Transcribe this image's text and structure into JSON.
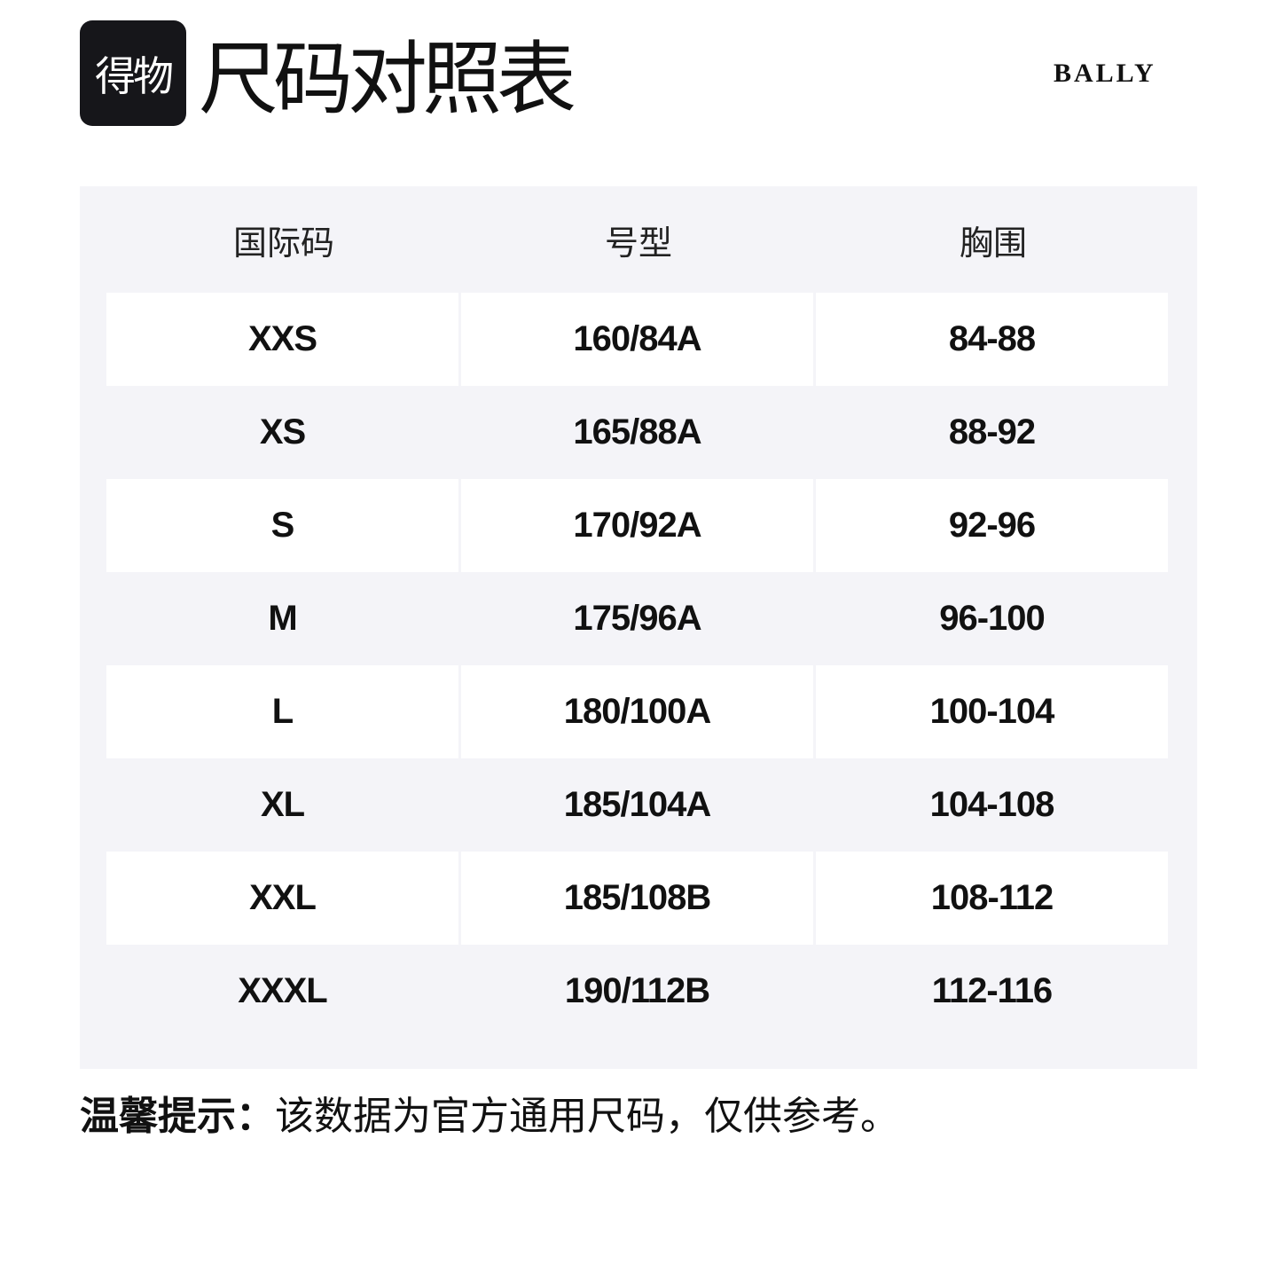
{
  "header": {
    "logo_text": "得物",
    "title": "尺码对照表",
    "brand": "BALLY"
  },
  "table": {
    "columns": [
      "国际码",
      "号型",
      "胸围"
    ],
    "rows": [
      [
        "XXS",
        "160/84A",
        "84-88"
      ],
      [
        "XS",
        "165/88A",
        "88-92"
      ],
      [
        "S",
        "170/92A",
        "92-96"
      ],
      [
        "M",
        "175/96A",
        "96-100"
      ],
      [
        "L",
        "180/100A",
        "100-104"
      ],
      [
        "XL",
        "185/104A",
        "104-108"
      ],
      [
        "XXL",
        "185/108B",
        "108-112"
      ],
      [
        "XXXL",
        "190/112B",
        "112-116"
      ]
    ]
  },
  "note": {
    "label": "温馨提示：",
    "text": "该数据为官方通用尺码，仅供参考。"
  }
}
